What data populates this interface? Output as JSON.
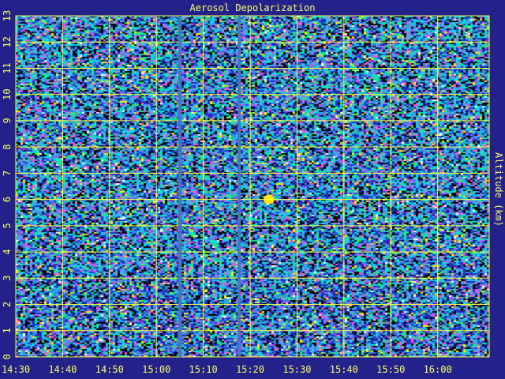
{
  "chart_data": {
    "type": "heatmap",
    "title": "Aerosol Depolarization",
    "ylabel": "Altitude (km)",
    "xlabel": "",
    "x_tick_labels": [
      "14:30",
      "14:40",
      "14:50",
      "15:00",
      "15:10",
      "15:20",
      "15:30",
      "15:40",
      "15:50",
      "16:00"
    ],
    "x_tick_minutes": [
      870,
      880,
      890,
      900,
      910,
      920,
      930,
      940,
      950,
      960
    ],
    "xlim_minutes": [
      870,
      971
    ],
    "y_ticks": [
      0,
      1,
      2,
      3,
      4,
      5,
      6,
      7,
      8,
      9,
      10,
      11,
      12,
      13
    ],
    "y_tick_labels": [
      "0",
      "1",
      "2",
      "3",
      "4",
      "5",
      "6",
      "7",
      "8",
      "9",
      "10",
      "11",
      "12",
      "13"
    ],
    "ylim": [
      0,
      13
    ],
    "grid": true,
    "data_gaps_minutes": [
      [
        904.6,
        905.4
      ],
      [
        917.3,
        918.0
      ]
    ],
    "feature": {
      "x_minutes": 924,
      "altitude_km": 6.0
    },
    "colors": {
      "background": "#22228a",
      "grid": "#ffff44",
      "text": "#ffff66",
      "gap": "#4a73c2",
      "palette": [
        "#000000",
        "#1e2fbf",
        "#3a7fe0",
        "#33bbee",
        "#00e5d0",
        "#22ee66",
        "#9966ff",
        "#ff55cc",
        "#ffee00",
        "#ffffff"
      ]
    }
  }
}
